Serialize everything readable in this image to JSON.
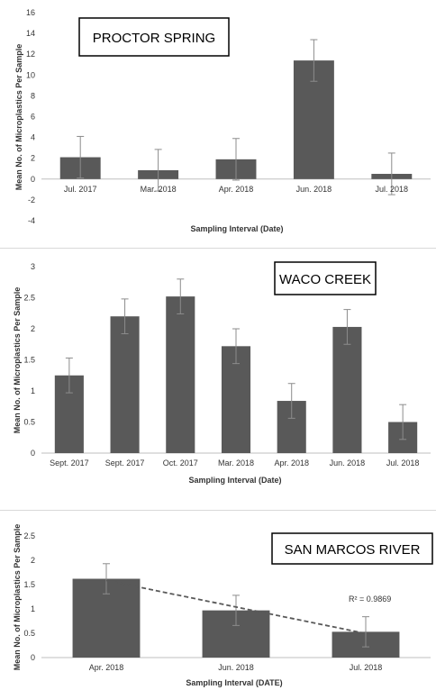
{
  "chart_data": [
    {
      "type": "bar",
      "title": "PROCTOR SPRING",
      "xlabel": "Sampling Interval (Date)",
      "ylabel": "Mean No. of Microplastics Per Sample",
      "categories": [
        "Jul. 2017",
        "Mar. 2018",
        "Apr. 2018",
        "Jun. 2018",
        "Jul. 2018"
      ],
      "values": [
        2.1,
        0.85,
        1.9,
        11.4,
        0.5
      ],
      "errors": [
        2.0,
        2.0,
        2.0,
        2.0,
        2.0
      ],
      "ylim": [
        -4,
        16
      ],
      "yticks": [
        "-4",
        "-2",
        "0",
        "2",
        "4",
        "6",
        "8",
        "10",
        "12",
        "14",
        "16"
      ],
      "grid": false,
      "bar_color": "#595959"
    },
    {
      "type": "bar",
      "title": "WACO CREEK",
      "xlabel": "Sampling Interval (Date)",
      "ylabel": "Mean No. of Microplastics Per Sample",
      "categories": [
        "Sept. 2017",
        "Sept. 2017",
        "Oct. 2017",
        "Mar. 2018",
        "Apr. 2018",
        "Jun. 2018",
        "Jul. 2018"
      ],
      "values": [
        1.25,
        2.2,
        2.52,
        1.72,
        0.84,
        2.03,
        0.5
      ],
      "errors": [
        0.28,
        0.28,
        0.28,
        0.28,
        0.28,
        0.28,
        0.28
      ],
      "ylim": [
        0,
        3
      ],
      "yticks": [
        "0",
        "0.5",
        "1",
        "1.5",
        "2",
        "2.5",
        "3"
      ],
      "grid": false,
      "bar_color": "#595959"
    },
    {
      "type": "bar",
      "title": "SAN MARCOS RIVER",
      "xlabel": "Sampling Interval (DATE)",
      "ylabel": "Mean No. of Microplastics Per Sample",
      "categories": [
        "Apr. 2018",
        "Jun. 2018",
        "Jul. 2018"
      ],
      "values": [
        1.62,
        0.97,
        0.53
      ],
      "errors": [
        0.31,
        0.31,
        0.31
      ],
      "ylim": [
        0,
        2.5
      ],
      "yticks": [
        "0",
        "0.5",
        "1",
        "1.5",
        "2",
        "2.5"
      ],
      "grid": false,
      "bar_color": "#595959",
      "trendline": {
        "type": "linear",
        "style": "dashed",
        "color": "#595959",
        "r2_label": "R² = 0.9869"
      }
    }
  ]
}
